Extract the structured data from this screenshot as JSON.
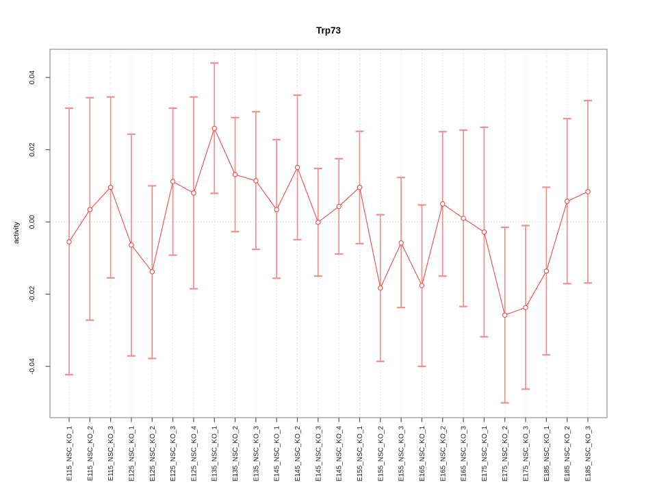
{
  "chart_data": {
    "type": "line",
    "title": "Trp73",
    "xlabel": "",
    "ylabel": "activity",
    "legend": "none",
    "grid": {
      "vertical_dotted_per_category": true,
      "zero_line_dotted": true,
      "horizontal_gridlines": false
    },
    "yticks": [
      -0.04,
      -0.02,
      0.0,
      0.02,
      0.04
    ],
    "ytick_labels": [
      "-0.04",
      "-0.02",
      "0.00",
      "0.02",
      "0.04"
    ],
    "ylim": [
      -0.0542,
      0.0478
    ],
    "categories": [
      "E115_NSC_KO_1",
      "E115_NSC_KO_2",
      "E115_NSC_KO_3",
      "E125_NSC_KO_1",
      "E125_NSC_KO_2",
      "E125_NSC_KO_3",
      "E125_NSC_KO_4",
      "E135_NSC_KO_1",
      "E135_NSC_KO_2",
      "E135_NSC_KO_3",
      "E145_NSC_KO_1",
      "E145_NSC_KO_2",
      "E145_NSC_KO_3",
      "E145_NSC_KO_4",
      "E155_NSC_KO_1",
      "E155_NSC_KO_2",
      "E155_NSC_KO_3",
      "E165_NSC_KO_1",
      "E165_NSC_KO_2",
      "E165_NSC_KO_3",
      "E175_NSC_KO_1",
      "E175_NSC_KO_2",
      "E175_NSC_KO_3",
      "E185_NSC_KO_1",
      "E185_NSC_KO_2",
      "E185_NSC_KO_3"
    ],
    "series": [
      {
        "name": "activity",
        "marker": "open-circle",
        "values": [
          -0.0055,
          0.0034,
          0.0096,
          -0.0064,
          -0.0138,
          0.0112,
          0.008,
          0.0259,
          0.0131,
          0.0114,
          0.0034,
          0.0151,
          -0.0001,
          0.0043,
          0.0096,
          -0.0183,
          -0.0058,
          -0.0176,
          0.005,
          0.001,
          -0.0028,
          -0.0258,
          -0.0237,
          -0.0136,
          0.0057,
          0.0084
        ],
        "error_upper": [
          0.0315,
          0.0344,
          0.0346,
          0.0243,
          0.01,
          0.0315,
          0.0346,
          0.044,
          0.0289,
          0.0305,
          0.0228,
          0.0351,
          0.0148,
          0.0175,
          0.0251,
          0.002,
          0.0123,
          0.0047,
          0.025,
          0.0254,
          0.0262,
          -0.0015,
          -0.001,
          0.0096,
          0.0286,
          0.0336
        ],
        "error_lower": [
          -0.0423,
          -0.0272,
          -0.0155,
          -0.0371,
          -0.0378,
          -0.0092,
          -0.0185,
          0.0079,
          -0.0027,
          -0.0076,
          -0.0156,
          -0.0049,
          -0.015,
          -0.0089,
          -0.006,
          -0.0386,
          -0.0237,
          -0.04,
          -0.015,
          -0.0234,
          -0.0318,
          -0.0501,
          -0.0463,
          -0.0368,
          -0.0171,
          -0.0169
        ]
      }
    ],
    "colors": {
      "point_line": "#ec4a43",
      "error_bar": "#f0908d",
      "grid": "#dcdcdc",
      "zero_line": "#d0d0d0",
      "axis_box": "#9a9a9a",
      "tick_mark": "#555555",
      "tick_text": "#1a1a1a",
      "background": "#ffffff"
    }
  }
}
